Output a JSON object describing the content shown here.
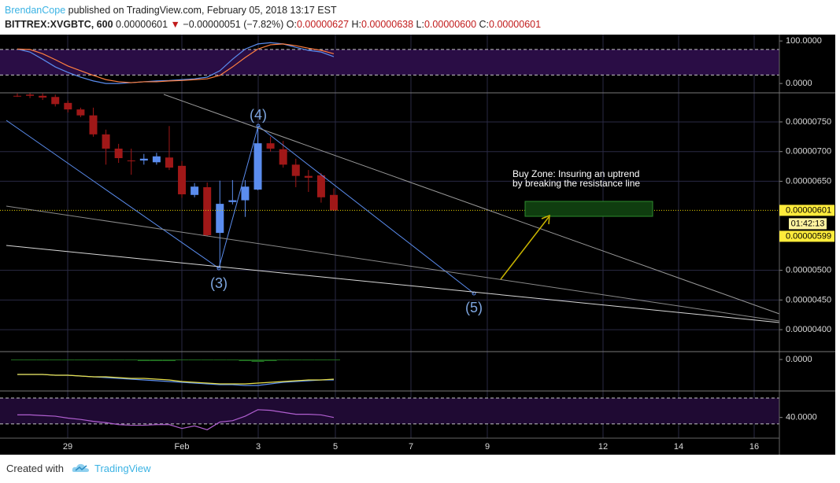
{
  "header": {
    "author": "BrendanCope",
    "published": "published on TradingView.com, February 05, 2018 13:17 EST",
    "symbol": "BITTREX:XVGBTC, 600",
    "last": "0.00000601",
    "arrow": "▼",
    "change": "−0.00000051 (−7.82%)",
    "o_label": "O:",
    "o": "0.00000627",
    "h_label": "H:",
    "h": "0.00000638",
    "l_label": "L:",
    "l": "0.00000600",
    "c_label": "C:",
    "c": "0.00000601"
  },
  "chart_data": {
    "type": "candlestick",
    "ohlc": [
      [
        7.94e-06,
        7.98e-06,
        7.92e-06,
        7.94e-06
      ],
      [
        7.96e-06,
        7.99e-06,
        7.9e-06,
        7.94e-06
      ],
      [
        7.94e-06,
        7.98e-06,
        7.87e-06,
        7.91e-06
      ],
      [
        7.92e-06,
        7.96e-06,
        7.76e-06,
        7.8e-06
      ],
      [
        7.82e-06,
        7.86e-06,
        7.66e-06,
        7.71e-06
      ],
      [
        7.71e-06,
        7.74e-06,
        7.58e-06,
        7.61e-06
      ],
      [
        7.61e-06,
        7.74e-06,
        7.25e-06,
        7.29e-06
      ],
      [
        7.29e-06,
        7.37e-06,
        6.78e-06,
        7.05e-06
      ],
      [
        7.05e-06,
        7.13e-06,
        6.81e-06,
        6.89e-06
      ],
      [
        6.85e-06,
        7.05e-06,
        6.61e-06,
        6.85e-06
      ],
      [
        6.85e-06,
        6.96e-06,
        6.78e-06,
        6.88e-06
      ],
      [
        6.82e-06,
        6.98e-06,
        6.78e-06,
        6.92e-06
      ],
      [
        6.9e-06,
        7.43e-06,
        6.69e-06,
        6.73e-06
      ],
      [
        6.76e-06,
        6.84e-06,
        6.22e-06,
        6.28e-06
      ],
      [
        6.27e-06,
        6.47e-06,
        6.23e-06,
        6.41e-06
      ],
      [
        6.4e-06,
        6.48e-06,
        5.57e-06,
        5.59e-06
      ],
      [
        5.63e-06,
        6.51e-06,
        5.05e-06,
        6.12e-06
      ],
      [
        6.15e-06,
        6.52e-06,
        6.11e-06,
        6.18e-06
      ],
      [
        6.18e-06,
        6.52e-06,
        5.9e-06,
        6.41e-06
      ],
      [
        6.36e-06,
        7.41e-06,
        6.35e-06,
        7.14e-06
      ],
      [
        7.14e-06,
        7.25e-06,
        7e-06,
        7.05e-06
      ],
      [
        7.04e-06,
        7.18e-06,
        6.73e-06,
        6.78e-06
      ],
      [
        6.78e-06,
        6.88e-06,
        6.4e-06,
        6.59e-06
      ],
      [
        6.59e-06,
        6.69e-06,
        6.32e-06,
        6.56e-06
      ],
      [
        6.6e-06,
        6.64e-06,
        6.14e-06,
        6.23e-06
      ],
      [
        6.27e-06,
        6.38e-06,
        6e-06,
        6.01e-06
      ]
    ],
    "up_color": "#5b8def",
    "down_color": "#a01818",
    "ylim": [
      3.63e-06,
      7.99e-06
    ],
    "yticks": [
      {
        "value": 4e-06,
        "label": "0.00000400"
      },
      {
        "value": 4.5e-06,
        "label": "0.00000450"
      },
      {
        "value": 5e-06,
        "label": "0.00000500"
      },
      {
        "value": 6.5e-06,
        "label": "0.00000650"
      },
      {
        "value": 7e-06,
        "label": "0.00000700"
      },
      {
        "value": 7.5e-06,
        "label": "0.00000750"
      }
    ],
    "grid": true,
    "x_tick_labels": [
      "29",
      "Feb",
      "3",
      "5",
      "7",
      "9",
      "12",
      "14",
      "16"
    ],
    "last_price": {
      "value": 6.01e-06,
      "label": "0.00000601"
    },
    "countdown": "01:42:13",
    "bid": {
      "value": 5.99e-06,
      "label": "0.00000599"
    },
    "annotations": {
      "wave_3": "(3)",
      "wave_4": "(4)",
      "wave_5": "(5)",
      "buy_zone": [
        "Buy Zone: Insuring an uptrend",
        "by breaking the resistance line"
      ]
    },
    "stoch": {
      "ylim": [
        -22,
        115
      ],
      "yticks": [
        {
          "value": 0,
          "label": "0.0000"
        },
        {
          "value": 100,
          "label": "100.0000"
        }
      ],
      "bands": [
        20,
        80
      ],
      "band_color": "#2a0d45",
      "series": [
        {
          "color": "#5b8def",
          "values": [
            81,
            74,
            57,
            39,
            26,
            15,
            6,
            0,
            0,
            2,
            4,
            6,
            7,
            9,
            11,
            15,
            30,
            57,
            81,
            93,
            96,
            93,
            85,
            78,
            74,
            63
          ]
        },
        {
          "color": "#ff7f3f",
          "values": [
            81,
            80,
            70,
            56,
            41,
            30,
            19,
            9,
            4,
            2,
            4,
            4,
            6,
            7,
            9,
            11,
            19,
            39,
            61,
            81,
            91,
            93,
            89,
            83,
            78,
            70
          ]
        }
      ]
    },
    "macd": {
      "ylim": [
        -4e-07,
        1e-07
      ],
      "yticks": [
        {
          "value": 0,
          "label": "0.0000"
        }
      ],
      "histogram_color": "#1f6b1f",
      "histogram": [
        0,
        0,
        0,
        0,
        0,
        0,
        0,
        0,
        -1e-08,
        -1e-08,
        -2e-08,
        -2e-08,
        -2e-08,
        -1e-08,
        -1e-08,
        -1e-08,
        -1e-08,
        -1e-08,
        -2e-08,
        -3e-08,
        -2e-08,
        -1e-08,
        -1e-08,
        -1e-08,
        0,
        -1e-08
      ],
      "series": [
        {
          "color": "#5b8def",
          "values": [
            -1.9e-07,
            -1.9e-07,
            -1.9e-07,
            -2e-07,
            -2e-07,
            -2.1e-07,
            -2.2e-07,
            -2.3e-07,
            -2.4e-07,
            -2.5e-07,
            -2.6e-07,
            -2.7e-07,
            -2.8e-07,
            -2.9e-07,
            -3e-07,
            -3.1e-07,
            -3.2e-07,
            -3.2e-07,
            -3.3e-07,
            -3.3e-07,
            -3.1e-07,
            -2.9e-07,
            -2.8e-07,
            -2.7e-07,
            -2.6e-07,
            -2.6e-07
          ]
        },
        {
          "color": "#e8e04a",
          "values": [
            -1.9e-07,
            -1.9e-07,
            -1.9e-07,
            -2e-07,
            -2e-07,
            -2.1e-07,
            -2.2e-07,
            -2.2e-07,
            -2.3e-07,
            -2.4e-07,
            -2.4e-07,
            -2.5e-07,
            -2.6e-07,
            -2.8e-07,
            -2.9e-07,
            -3e-07,
            -3.1e-07,
            -3.1e-07,
            -3.1e-07,
            -3e-07,
            -2.9e-07,
            -2.8e-07,
            -2.7e-07,
            -2.6e-07,
            -2.6e-07,
            -2.5e-07
          ]
        }
      ]
    },
    "rsi": {
      "ylim": [
        8,
        81
      ],
      "yticks": [
        {
          "value": 40,
          "label": "40.0000"
        }
      ],
      "bands": [
        30,
        70
      ],
      "band_color": "#1f0a33",
      "series": [
        {
          "color": "#b05fd0",
          "values": [
            44,
            44,
            43,
            42,
            39,
            37,
            34,
            32,
            29,
            28,
            28,
            29,
            29,
            23,
            27,
            21,
            33,
            35,
            42,
            52,
            51,
            48,
            45,
            45,
            44,
            40
          ]
        }
      ]
    }
  },
  "footer": {
    "created": "Created with",
    "brand": "TradingView"
  }
}
